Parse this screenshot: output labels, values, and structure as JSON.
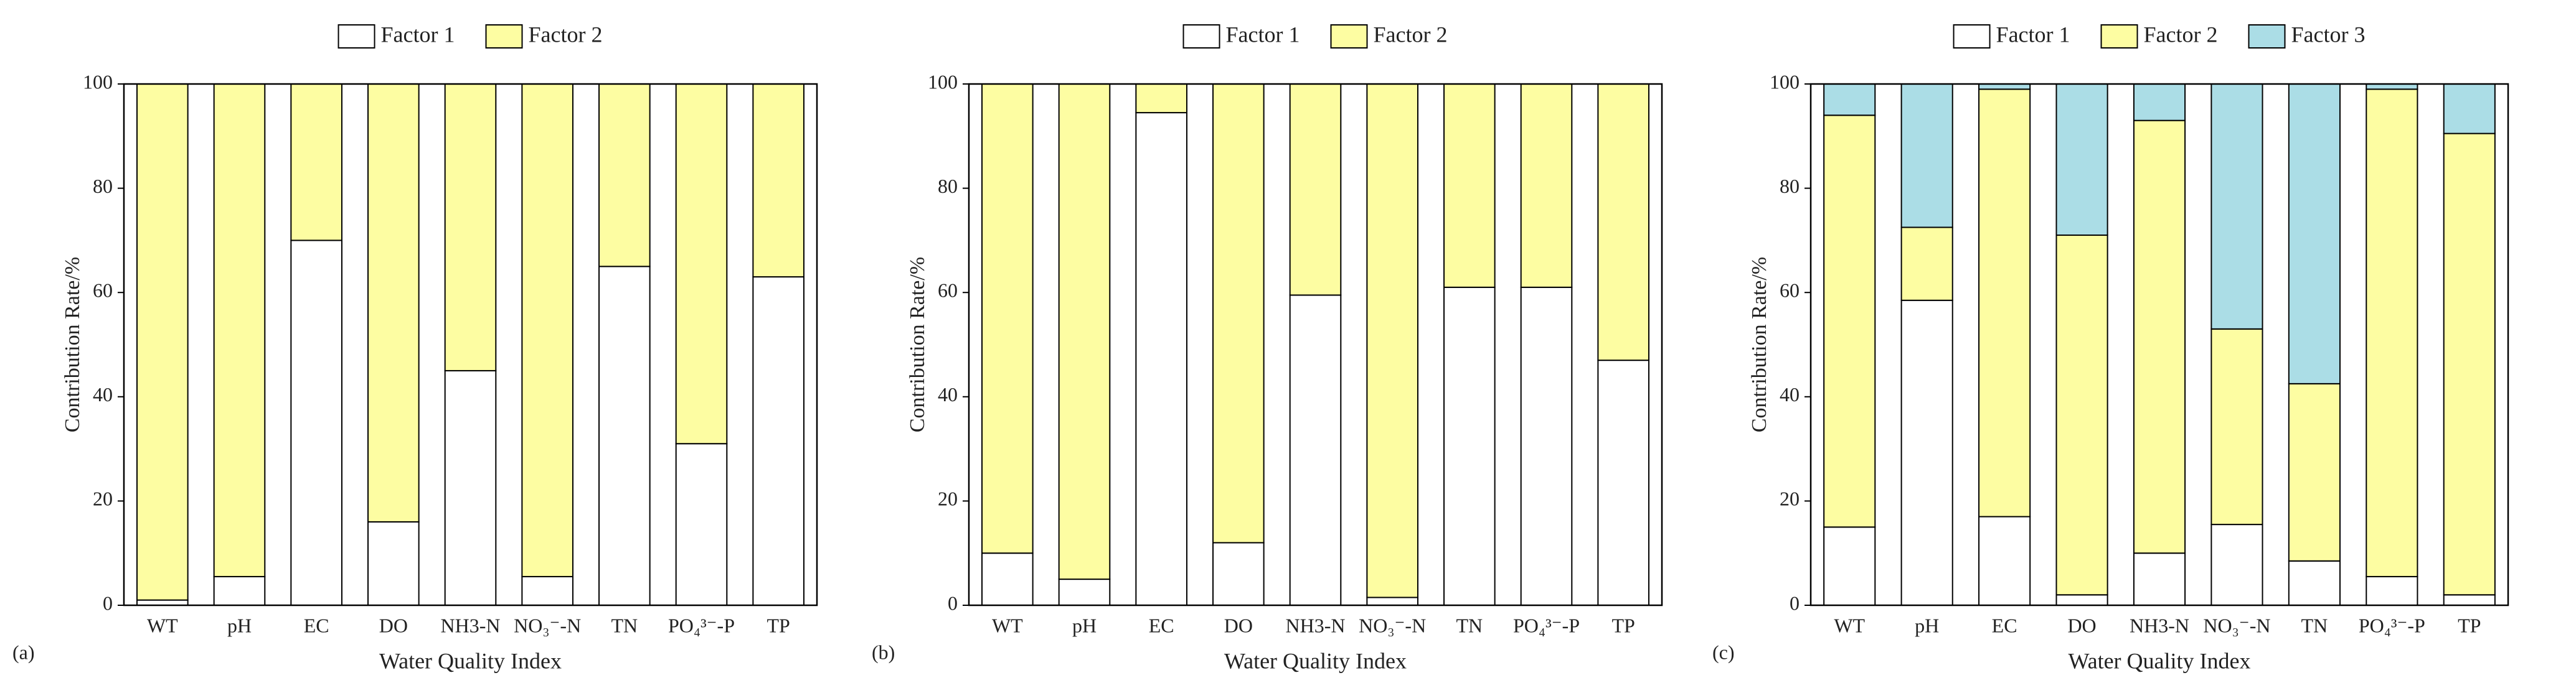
{
  "chart_data": [
    {
      "type": "stacked-bar",
      "label": "(a)",
      "x_label": "Water Quality Index",
      "y_label": "Contribution Rate/%",
      "categories": [
        "WT",
        "pH",
        "EC",
        "DO",
        "NH3-N",
        "NO₃⁻-N",
        "TN",
        "PO₄³⁻-P",
        "TP"
      ],
      "series": [
        {
          "name": "Factor 1",
          "color": "#ffffff",
          "values": [
            1,
            5.5,
            70,
            16,
            45,
            5.5,
            65,
            31,
            63
          ]
        },
        {
          "name": "Factor 2",
          "color": "#fdfda2",
          "values": [
            99,
            94.5,
            30,
            84,
            55,
            94.5,
            35,
            69,
            37
          ]
        }
      ],
      "ylim": [
        0,
        100
      ],
      "yticks": [
        0,
        20,
        40,
        60,
        80,
        100
      ]
    },
    {
      "type": "stacked-bar",
      "label": "(b)",
      "x_label": "Water Quality Index",
      "y_label": "Contribution Rate/%",
      "categories": [
        "WT",
        "pH",
        "EC",
        "DO",
        "NH3-N",
        "NO₃⁻-N",
        "TN",
        "PO₄³⁻-P",
        "TP"
      ],
      "series": [
        {
          "name": "Factor 1",
          "color": "#ffffff",
          "values": [
            10,
            5,
            94.5,
            12,
            59.5,
            1.5,
            61,
            61,
            47
          ]
        },
        {
          "name": "Factor 2",
          "color": "#fdfda2",
          "values": [
            90,
            95,
            5.5,
            88,
            40.5,
            98.5,
            39,
            39,
            53
          ]
        }
      ],
      "ylim": [
        0,
        100
      ],
      "yticks": [
        0,
        20,
        40,
        60,
        80,
        100
      ]
    },
    {
      "type": "stacked-bar",
      "label": "(c)",
      "x_label": "Water Quality Index",
      "y_label": "Contribution Rate/%",
      "categories": [
        "WT",
        "pH",
        "EC",
        "DO",
        "NH3-N",
        "NO₃⁻-N",
        "TN",
        "PO₄³⁻-P",
        "TP"
      ],
      "series": [
        {
          "name": "Factor 1",
          "color": "#ffffff",
          "values": [
            15,
            58.5,
            17,
            2,
            10,
            15.5,
            8.5,
            5.5,
            2
          ]
        },
        {
          "name": "Factor 2",
          "color": "#fdfda2",
          "values": [
            79,
            14,
            82,
            69,
            83,
            37.5,
            34,
            93.5,
            88.5
          ]
        },
        {
          "name": "Factor 3",
          "color": "#abdde6",
          "values": [
            6,
            27.5,
            1,
            29,
            7,
            47,
            57.5,
            1,
            9.5
          ]
        }
      ],
      "ylim": [
        0,
        100
      ],
      "yticks": [
        0,
        20,
        40,
        60,
        80,
        100
      ]
    }
  ]
}
